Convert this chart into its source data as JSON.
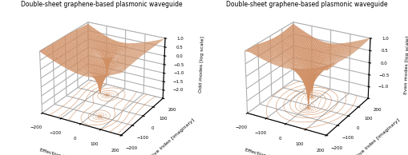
{
  "title": "Double-sheet graphene-based plasmonic waveguide",
  "xlabel": "Effective index [real]",
  "ylabel": "Effective index [imaginary]",
  "zlabel_odd": "Odd modes [log scale]",
  "zlabel_even": "Even modes [log scale]",
  "axis_range": [
    -200,
    200
  ],
  "surface_color": "#E8A070",
  "contour_color": "#C87840",
  "background_color": "#ffffff",
  "zlim_odd": [
    -2.5,
    1.0
  ],
  "zlim_even": [
    -1.5,
    1.0
  ],
  "zticks_odd": [
    -2.0,
    -1.5,
    -1.0,
    -0.5,
    0.0,
    0.5,
    1.0
  ],
  "zticks_even": [
    -1.0,
    -0.5,
    0.0,
    0.5,
    1.0
  ],
  "elev": 25,
  "azim": -60
}
